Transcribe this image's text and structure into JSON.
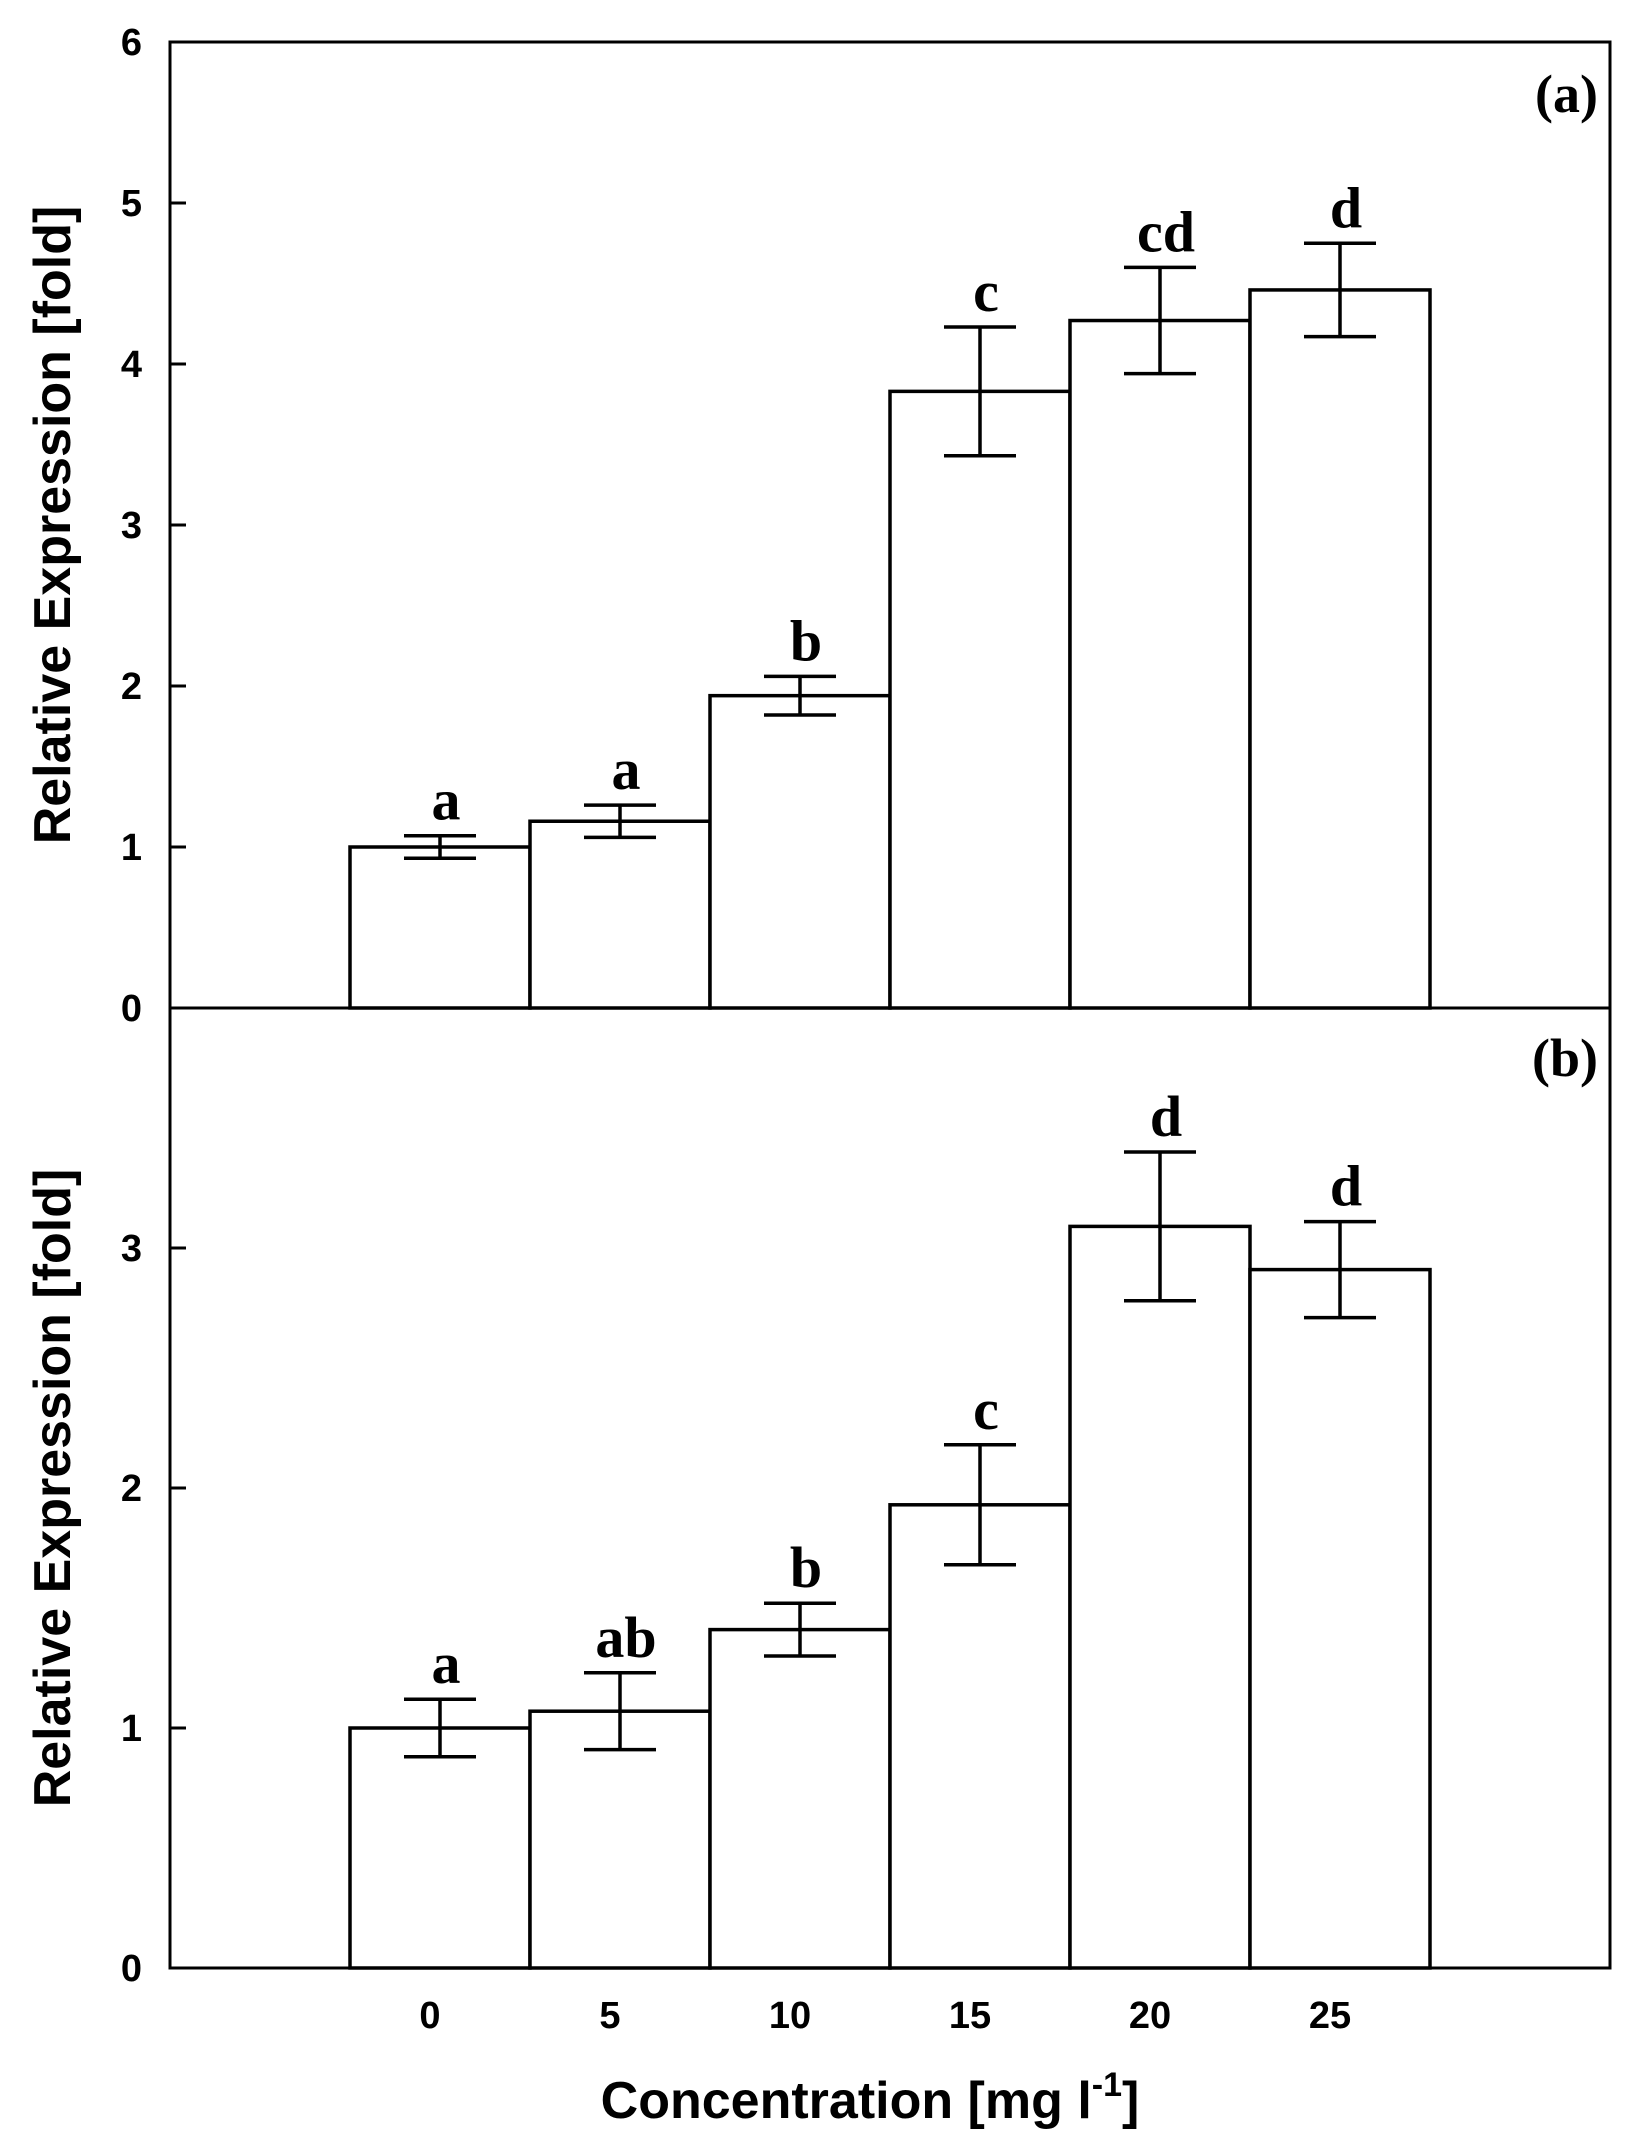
{
  "chart_data": [
    {
      "type": "bar",
      "panel_label": "(a)",
      "categories": [
        "0",
        "5",
        "10",
        "15",
        "20",
        "25"
      ],
      "values": [
        1.0,
        1.16,
        1.94,
        3.83,
        4.27,
        4.46
      ],
      "errors": [
        0.07,
        0.1,
        0.12,
        0.4,
        0.33,
        0.29
      ],
      "significance": [
        "a",
        "a",
        "b",
        "c",
        "cd",
        "d"
      ],
      "ylabel": "Relative Expression [fold]",
      "xlabel": "",
      "ylim": [
        0,
        6
      ],
      "yticks": [
        "0",
        "1",
        "2",
        "3",
        "4",
        "5",
        "6"
      ],
      "grid": false
    },
    {
      "type": "bar",
      "panel_label": "(b)",
      "categories": [
        "0",
        "5",
        "10",
        "15",
        "20",
        "25"
      ],
      "values": [
        1.0,
        1.07,
        1.41,
        1.93,
        3.09,
        2.91
      ],
      "errors": [
        0.12,
        0.16,
        0.11,
        0.25,
        0.31,
        0.2
      ],
      "significance": [
        "a",
        "ab",
        "b",
        "c",
        "d",
        "d"
      ],
      "ylabel": "Relative Expression [fold]",
      "xlabel": "Concentration [mg l",
      "xlabel_superscript": "-1",
      "xlabel_suffix": "]",
      "ylim": [
        0,
        4
      ],
      "yticks": [
        "0",
        "1",
        "2",
        "3"
      ],
      "xticks": [
        "0",
        "5",
        "10",
        "15",
        "20",
        "25"
      ],
      "grid": false
    }
  ]
}
